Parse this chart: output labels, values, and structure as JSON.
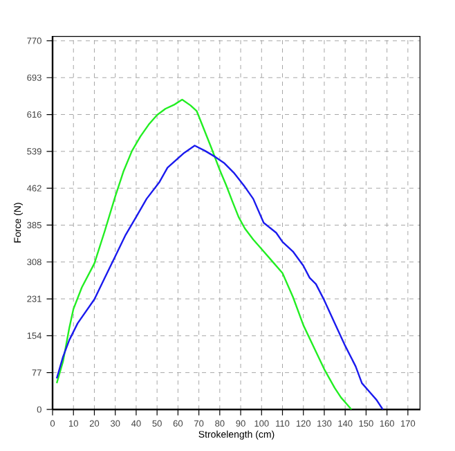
{
  "chart_data": {
    "type": "line",
    "xlabel": "Strokelength (cm)",
    "ylabel": "Force (N)",
    "xlim": [
      0,
      176
    ],
    "ylim": [
      0,
      780
    ],
    "xticks": [
      0,
      10,
      20,
      30,
      40,
      50,
      60,
      70,
      80,
      90,
      100,
      110,
      120,
      130,
      140,
      150,
      160,
      170
    ],
    "yticks": [
      0,
      77,
      154,
      231,
      308,
      385,
      462,
      539,
      616,
      693,
      770
    ],
    "grid": true,
    "marker": "none",
    "line_style": "solid",
    "series": [
      {
        "color": "#22ee22",
        "x": [
          2,
          5,
          8,
          10,
          14,
          20,
          25,
          30,
          34,
          38,
          42,
          46,
          50,
          54,
          58,
          62,
          66,
          69,
          72,
          76,
          80,
          83,
          86,
          89,
          92,
          96,
          100,
          105,
          110,
          115,
          120,
          125,
          130,
          135,
          138,
          141,
          143
        ],
        "values": [
          55,
          100,
          170,
          210,
          255,
          305,
          373,
          445,
          498,
          540,
          570,
          595,
          615,
          628,
          636,
          647,
          635,
          623,
          590,
          546,
          500,
          469,
          435,
          402,
          378,
          355,
          335,
          310,
          285,
          235,
          176,
          130,
          84,
          45,
          25,
          10,
          0
        ]
      },
      {
        "color": "#1a1aee",
        "x": [
          2,
          5,
          8,
          12,
          20,
          25,
          30,
          35,
          40,
          45,
          51,
          55,
          63,
          68,
          73,
          78,
          82,
          87,
          92,
          96,
          101,
          107,
          110,
          115,
          120,
          123,
          126,
          130,
          135,
          140,
          145,
          148,
          152,
          155,
          158
        ],
        "values": [
          65,
          110,
          145,
          180,
          230,
          275,
          320,
          365,
          402,
          440,
          474,
          505,
          536,
          551,
          540,
          527,
          515,
          493,
          465,
          440,
          390,
          369,
          350,
          330,
          300,
          275,
          262,
          228,
          180,
          133,
          90,
          55,
          35,
          20,
          0
        ]
      }
    ]
  }
}
